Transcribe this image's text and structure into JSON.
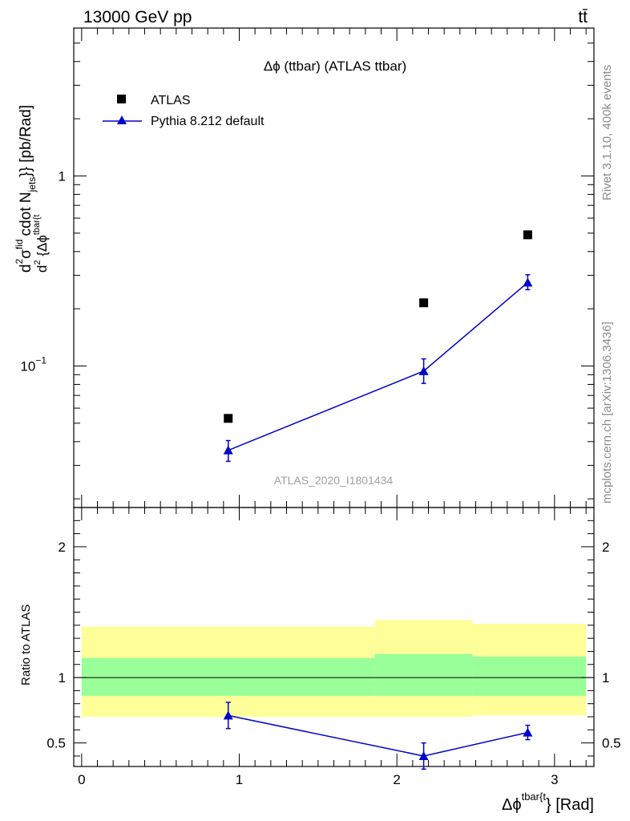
{
  "header": {
    "left": "13000 GeV pp",
    "right": "tt̄"
  },
  "side_labels": {
    "rivet": "Rivet 3.1.10,  400k events",
    "mcplots": "mcplots.cern.ch [arXiv:1306.3436]"
  },
  "colors": {
    "mc": "#0000cc",
    "data": "#000000",
    "band_outer": "#ffff99",
    "band_inner": "#99ff99"
  },
  "chart_data": {
    "type": "scatter",
    "title": "Δϕ (ttbar) (ATLAS ttbar)",
    "watermark": "ATLAS_2020_I1801434",
    "xlabel": "Δϕ^{tbar{t}} [Rad]",
    "xlabel_base": "Δϕ",
    "xlabel_sup": "tbar{t",
    "xlabel_tail": "} [Rad]",
    "ylabel": "d^2 σ^fid / d^2 {Δϕ^tbar{t}} cdot N_jets}} [pb/Rad]",
    "ylabel_main": "cdot N",
    "ylabel_sub": "jets",
    "ylabel_end": "}} [pb/Rad]",
    "ylabel_num": "d",
    "ylabel_num_sup": "2",
    "ylabel_sigma": "σ",
    "ylabel_sigma_sup": "fid",
    "ylabel_den": "d",
    "ylabel_den_sup": "2",
    "ylabel_den_rest": " {Δϕ",
    "ylabel_den_rest_sup": "tbar{t",
    "yscale": "log",
    "xlim": [
      -0.05,
      3.25
    ],
    "ylim": [
      0.018,
      6.0
    ],
    "y_ticks": [
      {
        "value": 1,
        "label": "1"
      },
      {
        "value": 0.1,
        "label": "10",
        "exp": "−1"
      }
    ],
    "x_ticks": [
      {
        "value": 0,
        "label": "0"
      },
      {
        "value": 1,
        "label": "1"
      },
      {
        "value": 2,
        "label": "2"
      },
      {
        "value": 3,
        "label": "3"
      }
    ],
    "legend": [
      {
        "name": "ATLAS",
        "marker": "square"
      },
      {
        "name": "Pythia 8.212 default",
        "marker": "triangle"
      }
    ],
    "series": [
      {
        "name": "ATLAS",
        "x": [
          0.93,
          2.17,
          2.83
        ],
        "y": [
          0.053,
          0.215,
          0.49
        ]
      },
      {
        "name": "Pythia 8.212 default",
        "x": [
          0.93,
          2.17,
          2.83
        ],
        "y": [
          0.036,
          0.094,
          0.275
        ],
        "err_lo": [
          0.0045,
          0.013,
          0.023
        ],
        "err_hi": [
          0.0045,
          0.015,
          0.027
        ]
      }
    ],
    "ratio": {
      "ylabel": "Ratio to ATLAS",
      "ylim": [
        0.32,
        2.3
      ],
      "y_ticks": [
        {
          "value": 0.5,
          "label": "0.5"
        },
        {
          "value": 1,
          "label": "1"
        },
        {
          "value": 2,
          "label": "2"
        }
      ],
      "bands": [
        {
          "x0": 0.0,
          "x1": 1.86,
          "outer": [
            0.7,
            1.39
          ],
          "inner": [
            0.86,
            1.15
          ]
        },
        {
          "x0": 1.86,
          "x1": 2.48,
          "outer": [
            0.7,
            1.44
          ],
          "inner": [
            0.86,
            1.18
          ]
        },
        {
          "x0": 2.48,
          "x1": 3.2,
          "outer": [
            0.71,
            1.41
          ],
          "inner": [
            0.86,
            1.16
          ]
        }
      ],
      "mc": {
        "x": [
          0.93,
          2.17,
          2.83
        ],
        "y": [
          0.71,
          0.4,
          0.58
        ],
        "err_lo": [
          0.1,
          0.1,
          0.055
        ],
        "err_hi": [
          0.1,
          0.1,
          0.055
        ]
      }
    }
  }
}
